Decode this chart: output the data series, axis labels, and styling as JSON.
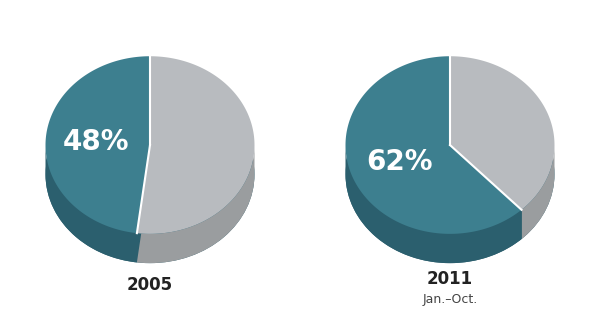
{
  "charts": [
    {
      "pct": 48,
      "label": "2005",
      "subtitle": ""
    },
    {
      "pct": 62,
      "label": "2011",
      "subtitle": "Jan.–Oct."
    }
  ],
  "teal_color": "#3d7f8f",
  "teal_dark": "#2b5f6e",
  "gray_color": "#b8bbbf",
  "gray_dark": "#9a9d9f",
  "bg_color": "#ffffff",
  "label_fontsize": 12,
  "sublabel_fontsize": 9,
  "pct_fontsize": 20
}
